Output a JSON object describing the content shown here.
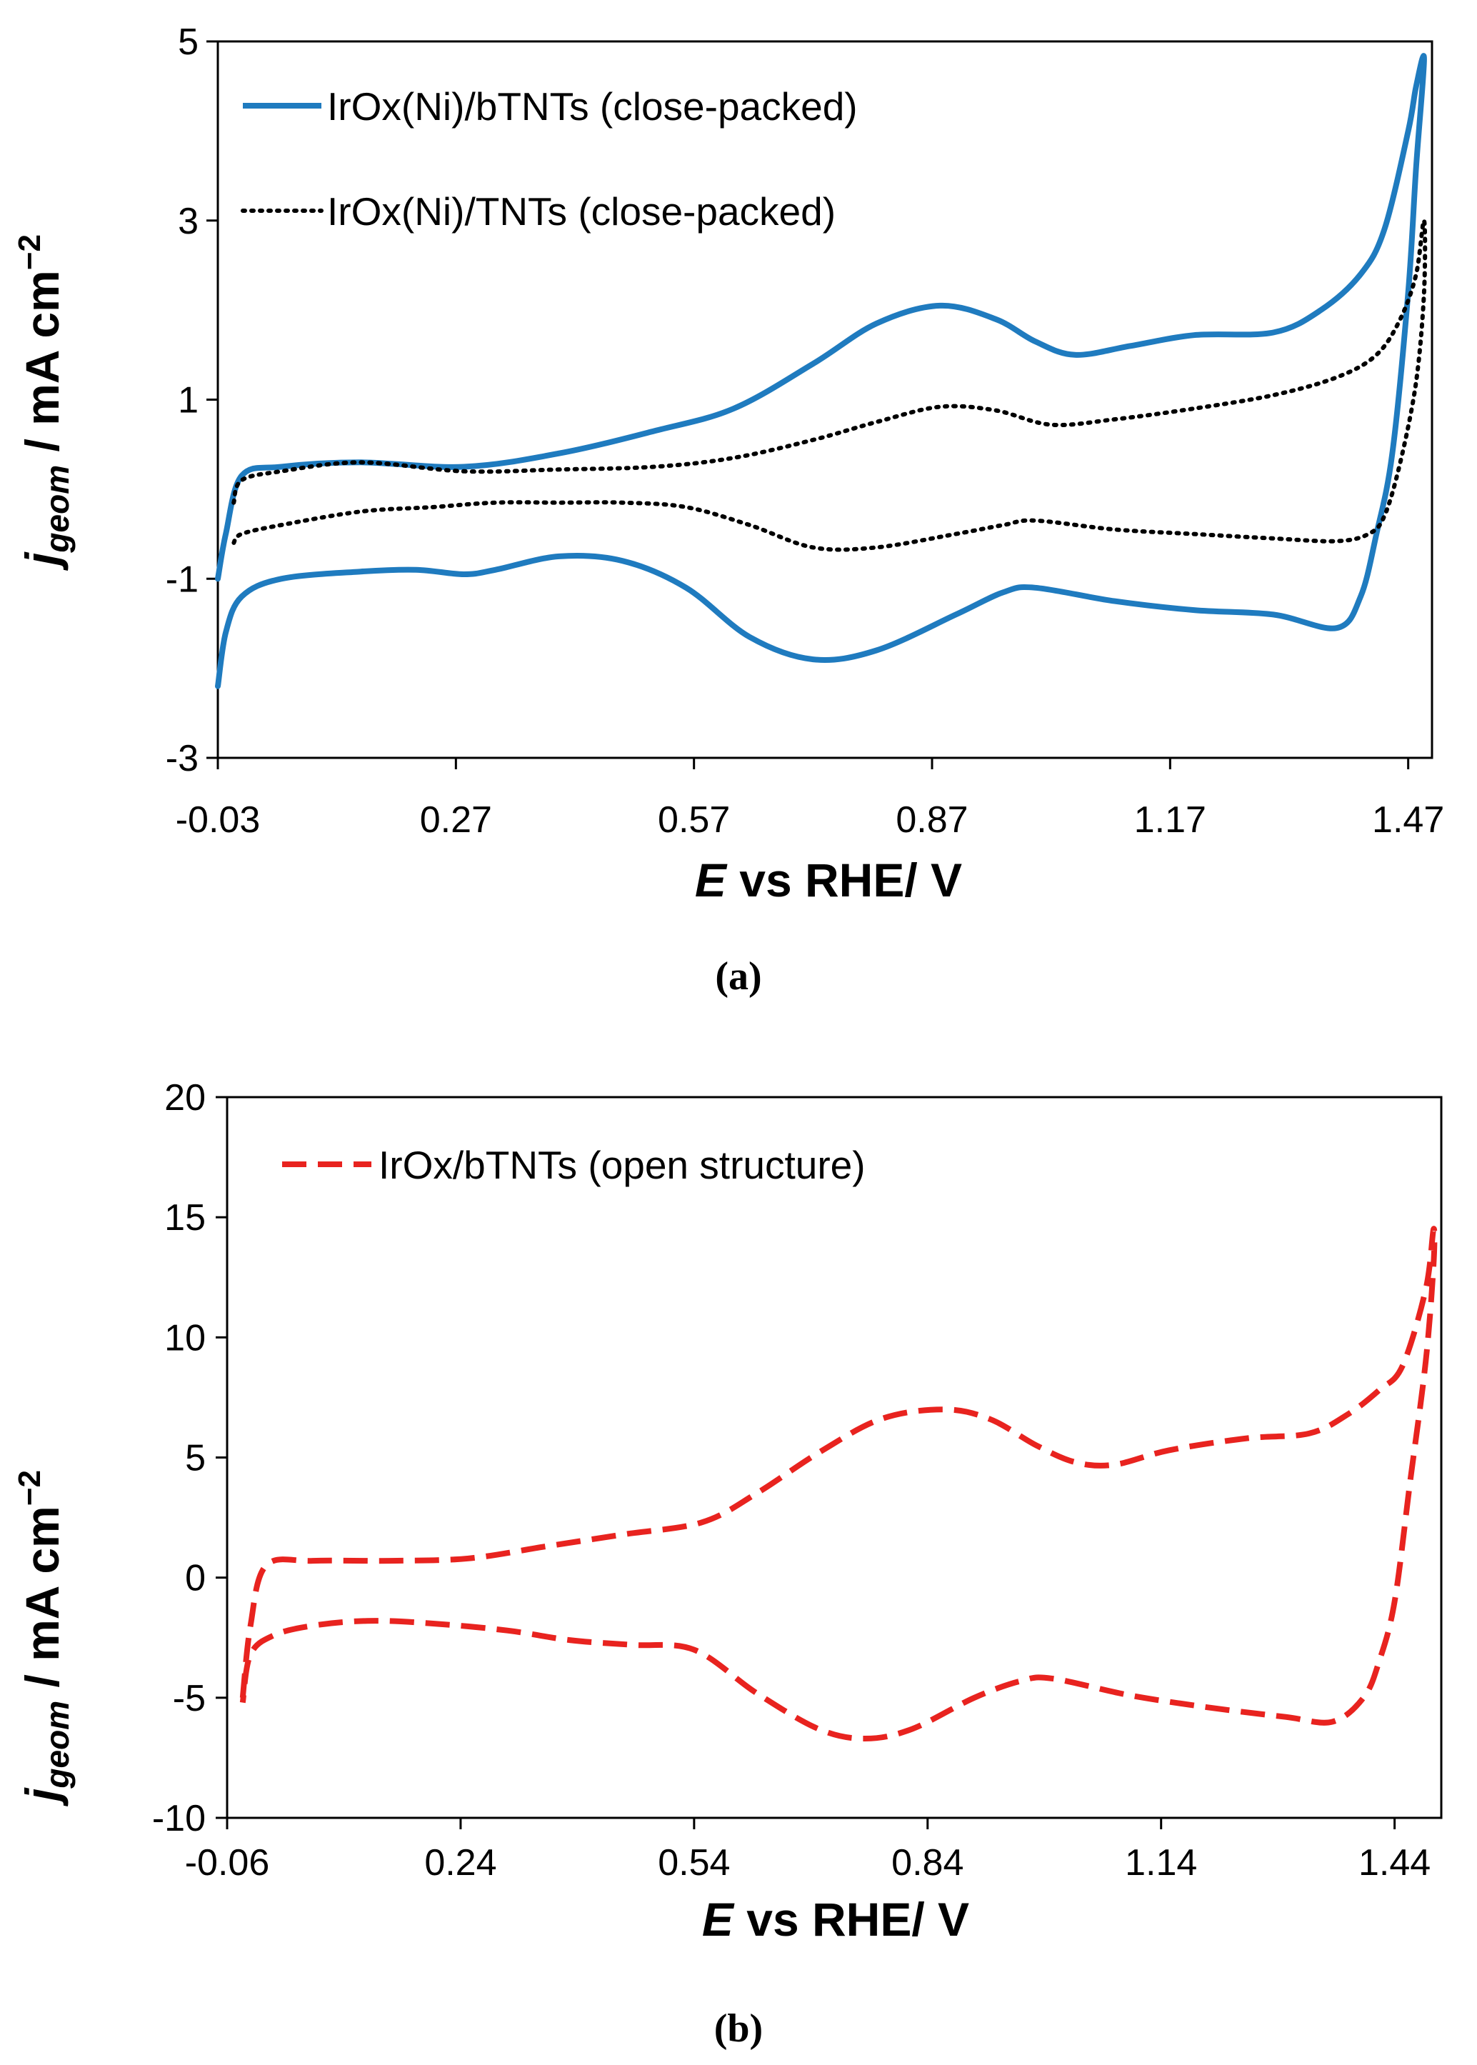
{
  "chart_data": [
    {
      "type": "line",
      "panel_label": "(a)",
      "xlabel_italic": "E",
      "xlabel_rest": " vs RHE/ V",
      "ylabel_italic": "j",
      "ylabel_sub": "geom",
      "ylabel_rest": " / mA cm",
      "ylabel_sup": "−2",
      "xlim": [
        -0.03,
        1.5
      ],
      "ylim": [
        -3,
        5
      ],
      "xticks": [
        -0.03,
        0.27,
        0.57,
        0.87,
        1.17,
        1.47
      ],
      "xtick_labels": [
        "-0.03",
        "0.27",
        "0.57",
        "0.87",
        "1.17",
        "1.47"
      ],
      "yticks": [
        -3,
        -1,
        1,
        3,
        5
      ],
      "ytick_labels": [
        "-3",
        "-1",
        "1",
        "3",
        "5"
      ],
      "legend_position": "top-left",
      "series": [
        {
          "name": "IrOx(Ni)/bTNTs (close-packed)",
          "color": "#1f7bbf",
          "style": "solid",
          "x": [
            -0.03,
            -0.02,
            0.0,
            0.05,
            0.15,
            0.28,
            0.4,
            0.52,
            0.62,
            0.72,
            0.8,
            0.88,
            0.95,
            1.0,
            1.05,
            1.12,
            1.2,
            1.3,
            1.36,
            1.41,
            1.44,
            1.47,
            1.48,
            1.49,
            1.48,
            1.47,
            1.45,
            1.43,
            1.41,
            1.38,
            1.3,
            1.2,
            1.1,
            1.0,
            0.96,
            0.9,
            0.8,
            0.72,
            0.64,
            0.56,
            0.48,
            0.4,
            0.32,
            0.28,
            0.22,
            0.15,
            0.05,
            0.0,
            -0.02,
            -0.03
          ],
          "y": [
            -1.0,
            -0.5,
            0.15,
            0.25,
            0.3,
            0.25,
            0.4,
            0.65,
            0.9,
            1.4,
            1.85,
            2.05,
            1.9,
            1.65,
            1.5,
            1.6,
            1.72,
            1.75,
            2.0,
            2.4,
            2.9,
            4.0,
            4.5,
            4.8,
            3.6,
            2.2,
            0.4,
            -0.5,
            -1.2,
            -1.55,
            -1.4,
            -1.35,
            -1.25,
            -1.1,
            -1.15,
            -1.4,
            -1.8,
            -1.9,
            -1.65,
            -1.1,
            -0.8,
            -0.75,
            -0.9,
            -0.95,
            -0.9,
            -0.92,
            -1.0,
            -1.2,
            -1.6,
            -2.2
          ]
        },
        {
          "name": "IrOx(Ni)/TNTs (close-packed)",
          "color": "#000000",
          "style": "dotted",
          "x": [
            -0.01,
            0.0,
            0.05,
            0.15,
            0.28,
            0.4,
            0.52,
            0.62,
            0.72,
            0.8,
            0.88,
            0.95,
            1.02,
            1.1,
            1.2,
            1.3,
            1.38,
            1.43,
            1.46,
            1.48,
            1.49,
            1.49,
            1.48,
            1.46,
            1.44,
            1.42,
            1.38,
            1.3,
            1.2,
            1.1,
            1.0,
            0.96,
            0.9,
            0.8,
            0.72,
            0.64,
            0.56,
            0.48,
            0.4,
            0.32,
            0.24,
            0.15,
            0.05,
            0.0,
            -0.01
          ],
          "y": [
            -0.15,
            0.1,
            0.2,
            0.3,
            0.2,
            0.22,
            0.25,
            0.35,
            0.55,
            0.75,
            0.92,
            0.88,
            0.72,
            0.78,
            0.9,
            1.05,
            1.25,
            1.5,
            1.9,
            2.4,
            3.0,
            2.2,
            1.2,
            0.3,
            -0.3,
            -0.5,
            -0.58,
            -0.55,
            -0.5,
            -0.45,
            -0.35,
            -0.4,
            -0.5,
            -0.65,
            -0.65,
            -0.4,
            -0.2,
            -0.15,
            -0.15,
            -0.15,
            -0.2,
            -0.25,
            -0.4,
            -0.5,
            -0.6
          ]
        }
      ]
    },
    {
      "type": "line",
      "panel_label": "(b)",
      "xlabel_italic": "E",
      "xlabel_rest": " vs RHE/ V",
      "ylabel_italic": "j",
      "ylabel_sub": "geom",
      "ylabel_rest": " / mA cm",
      "ylabel_sup": "−2",
      "xlim": [
        -0.06,
        1.5
      ],
      "ylim": [
        -10,
        20
      ],
      "xticks": [
        -0.06,
        0.24,
        0.54,
        0.84,
        1.14,
        1.44
      ],
      "xtick_labels": [
        "-0.06",
        "0.24",
        "0.54",
        "0.84",
        "1.14",
        "1.44"
      ],
      "yticks": [
        -10,
        -5,
        0,
        5,
        10,
        15,
        20
      ],
      "ytick_labels": [
        "-10",
        "-5",
        "0",
        "5",
        "10",
        "15",
        "20"
      ],
      "legend_position": "top-left",
      "series": [
        {
          "name": "IrOx/bTNTs (open structure)",
          "color": "#e8231f",
          "style": "dashed",
          "x": [
            -0.04,
            -0.03,
            -0.01,
            0.05,
            0.15,
            0.25,
            0.35,
            0.45,
            0.55,
            0.62,
            0.7,
            0.78,
            0.86,
            0.92,
            0.98,
            1.03,
            1.08,
            1.15,
            1.25,
            1.33,
            1.38,
            1.42,
            1.45,
            1.48,
            1.49,
            1.49,
            1.48,
            1.46,
            1.44,
            1.42,
            1.4,
            1.36,
            1.3,
            1.2,
            1.1,
            1.0,
            0.96,
            0.9,
            0.82,
            0.76,
            0.7,
            0.62,
            0.54,
            0.46,
            0.38,
            0.3,
            0.2,
            0.12,
            0.05,
            0.0,
            -0.03,
            -0.04
          ],
          "y": [
            -5.0,
            -2.0,
            0.5,
            0.7,
            0.7,
            0.8,
            1.3,
            1.8,
            2.3,
            3.5,
            5.2,
            6.6,
            7.0,
            6.6,
            5.5,
            4.8,
            4.7,
            5.3,
            5.8,
            6.0,
            6.8,
            7.8,
            8.8,
            12.0,
            14.5,
            13.0,
            9.0,
            4.0,
            -1.0,
            -3.5,
            -5.0,
            -6.0,
            -5.8,
            -5.4,
            -4.9,
            -4.2,
            -4.3,
            -5.0,
            -6.3,
            -6.7,
            -6.3,
            -4.8,
            -3.0,
            -2.8,
            -2.6,
            -2.2,
            -1.9,
            -1.8,
            -2.0,
            -2.4,
            -3.2,
            -5.2
          ]
        }
      ]
    }
  ]
}
